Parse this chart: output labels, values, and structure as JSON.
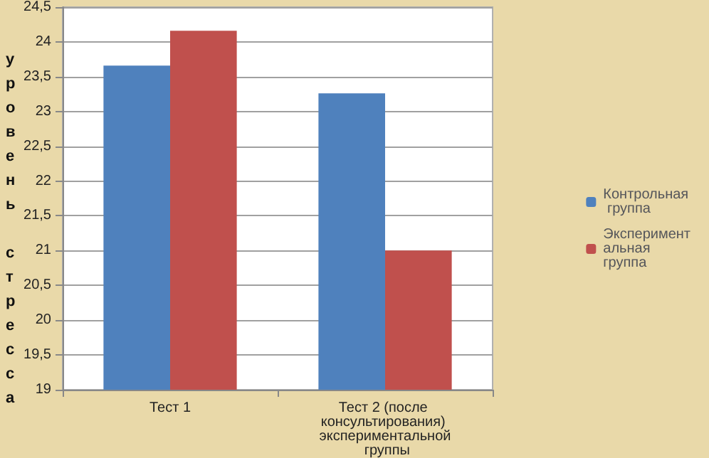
{
  "chart_data": {
    "type": "bar",
    "ylabel": "уровень стресса",
    "categories": [
      "Тест 1",
      "Тест 2 (после консультирования) экспериментальной группы"
    ],
    "series": [
      {
        "name": "Контрольная группа",
        "color": "#4f81bd",
        "values": [
          23.66,
          23.26
        ]
      },
      {
        "name": "Экспериментальная группа",
        "color": "#c0504d",
        "values": [
          24.16,
          21.0
        ]
      }
    ],
    "ylim": [
      19,
      24.5
    ],
    "yticks": [
      19,
      {
        "value": 19.5,
        "label": "19,5"
      },
      20,
      {
        "value": 20.5,
        "label": "20,5"
      },
      21,
      {
        "value": 21.5,
        "label": "21,5"
      },
      22,
      {
        "value": 22.5,
        "label": "22,5"
      },
      23,
      {
        "value": 23.5,
        "label": "23,5"
      },
      24,
      {
        "value": 24.5,
        "label": "24,5"
      }
    ],
    "grid": "y",
    "legend": "right"
  }
}
